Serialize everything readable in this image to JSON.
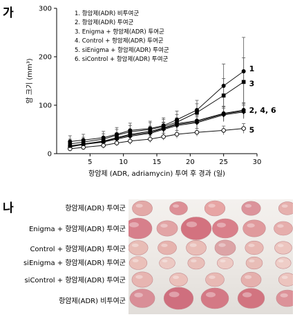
{
  "panels": {
    "top": "가",
    "bottom": "나"
  },
  "chart_data": {
    "type": "line",
    "title": "",
    "xlabel": "항암제 (ADR, adriamycin) 투여 후 경과 (일)",
    "ylabel": "암 크기 (mm³)",
    "xlim": [
      0,
      30
    ],
    "ylim": [
      0,
      300
    ],
    "xticks": [
      5,
      10,
      15,
      20,
      25,
      30
    ],
    "yticks": [
      0,
      100,
      200,
      300
    ],
    "legend_position": "top-left",
    "x": [
      2,
      4,
      7,
      9,
      11,
      14,
      16,
      18,
      21,
      25,
      28
    ],
    "series": [
      {
        "name": "1. 항암제(ADR) 비투여군",
        "end_label": "1",
        "marker": "filled-circle",
        "values": [
          25,
          28,
          33,
          40,
          48,
          52,
          58,
          70,
          90,
          140,
          170
        ],
        "errors": [
          12,
          12,
          13,
          14,
          15,
          15,
          16,
          18,
          20,
          45,
          70
        ]
      },
      {
        "name": "2. 항암제(ADR) 투여군",
        "end_label": "",
        "marker": "filled-triangle",
        "values": [
          15,
          20,
          25,
          32,
          38,
          44,
          52,
          60,
          66,
          82,
          88
        ],
        "errors": [
          8,
          8,
          9,
          10,
          10,
          11,
          12,
          12,
          13,
          15,
          15
        ]
      },
      {
        "name": "3. Enigma + 항암제(ADR) 투여군",
        "end_label": "3",
        "marker": "filled-square",
        "values": [
          20,
          24,
          30,
          38,
          45,
          50,
          56,
          65,
          85,
          120,
          148
        ],
        "errors": [
          10,
          10,
          11,
          12,
          13,
          14,
          15,
          16,
          18,
          35,
          50
        ]
      },
      {
        "name": "4. Control + 항암제(ADR) 투여군",
        "end_label": "",
        "marker": "filled-diamond",
        "values": [
          14,
          19,
          24,
          30,
          36,
          42,
          50,
          58,
          64,
          80,
          86
        ],
        "errors": [
          8,
          8,
          9,
          9,
          10,
          11,
          11,
          12,
          12,
          14,
          14
        ]
      },
      {
        "name": "5. siEnigma + 항암제(ADR) 투여군",
        "end_label": "5",
        "marker": "open-circle",
        "values": [
          10,
          13,
          17,
          22,
          26,
          30,
          35,
          40,
          44,
          48,
          52
        ],
        "errors": [
          5,
          5,
          6,
          6,
          7,
          7,
          7,
          8,
          8,
          9,
          10
        ]
      },
      {
        "name": "6. siControl + 항암제(ADR) 투여군",
        "end_label": "2, 4, 6",
        "marker": "filled-circle",
        "values": [
          16,
          20,
          26,
          33,
          40,
          46,
          53,
          62,
          68,
          83,
          90
        ],
        "errors": [
          8,
          8,
          9,
          10,
          10,
          11,
          12,
          12,
          13,
          15,
          15
        ]
      }
    ]
  },
  "photo_rows": [
    {
      "label": "항암제(ADR) 투여군",
      "tumors": [
        {
          "size": 0.58,
          "color": "#e3a9a7"
        },
        {
          "size": 0.46,
          "color": "#dd8f96"
        },
        {
          "size": 0.6,
          "color": "#e7a5a4"
        },
        {
          "size": 0.52,
          "color": "#dc939b"
        },
        {
          "size": 0.44,
          "color": "#e6b0ad"
        }
      ]
    },
    {
      "label": "Enigma + 항암제(ADR) 투여군",
      "tumors": [
        {
          "size": 1.0,
          "color": "#d77f8b"
        },
        {
          "size": 0.62,
          "color": "#e2a4a5"
        },
        {
          "size": 1.15,
          "color": "#d3727f"
        },
        {
          "size": 0.9,
          "color": "#d97f8a"
        },
        {
          "size": 0.72,
          "color": "#e09a9d"
        },
        {
          "size": 0.5,
          "color": "#e6aeac"
        }
      ]
    },
    {
      "label": "Control + 항암제(ADR) 투여군",
      "tumors": [
        {
          "size": 0.55,
          "color": "#e8bdb6"
        },
        {
          "size": 0.5,
          "color": "#e6b3ae"
        },
        {
          "size": 0.58,
          "color": "#e9bdb7"
        },
        {
          "size": 0.62,
          "color": "#dca4a6"
        },
        {
          "size": 0.48,
          "color": "#e8b8b3"
        },
        {
          "size": 0.42,
          "color": "#ecc5bf"
        }
      ]
    },
    {
      "label": "siEnigma + 항암제(ADR) 투여군",
      "tumors": [
        {
          "size": 0.45,
          "color": "#eac0b9"
        },
        {
          "size": 0.34,
          "color": "#ecc9c3"
        },
        {
          "size": 0.4,
          "color": "#e9bfb9"
        },
        {
          "size": 0.36,
          "color": "#edcac4"
        },
        {
          "size": 0.38,
          "color": "#e8bdb7"
        },
        {
          "size": 0.32,
          "color": "#eecdc7"
        }
      ]
    },
    {
      "label": "siControl + 항암제(ADR) 투여군",
      "tumors": [
        {
          "size": 0.62,
          "color": "#e7b5b1"
        },
        {
          "size": 0.46,
          "color": "#ebc0ba"
        },
        {
          "size": 0.5,
          "color": "#e8b9b4"
        },
        {
          "size": 0.58,
          "color": "#e5b0ad"
        },
        {
          "size": 0.44,
          "color": "#ecc4be"
        }
      ]
    },
    {
      "label": "항암제(ADR) 비투여군",
      "tumors": [
        {
          "size": 0.85,
          "color": "#d98e97"
        },
        {
          "size": 1.1,
          "color": "#cf6f7e"
        },
        {
          "size": 1.0,
          "color": "#d47985"
        },
        {
          "size": 0.95,
          "color": "#d27480"
        },
        {
          "size": 0.7,
          "color": "#dc9299"
        }
      ]
    }
  ]
}
